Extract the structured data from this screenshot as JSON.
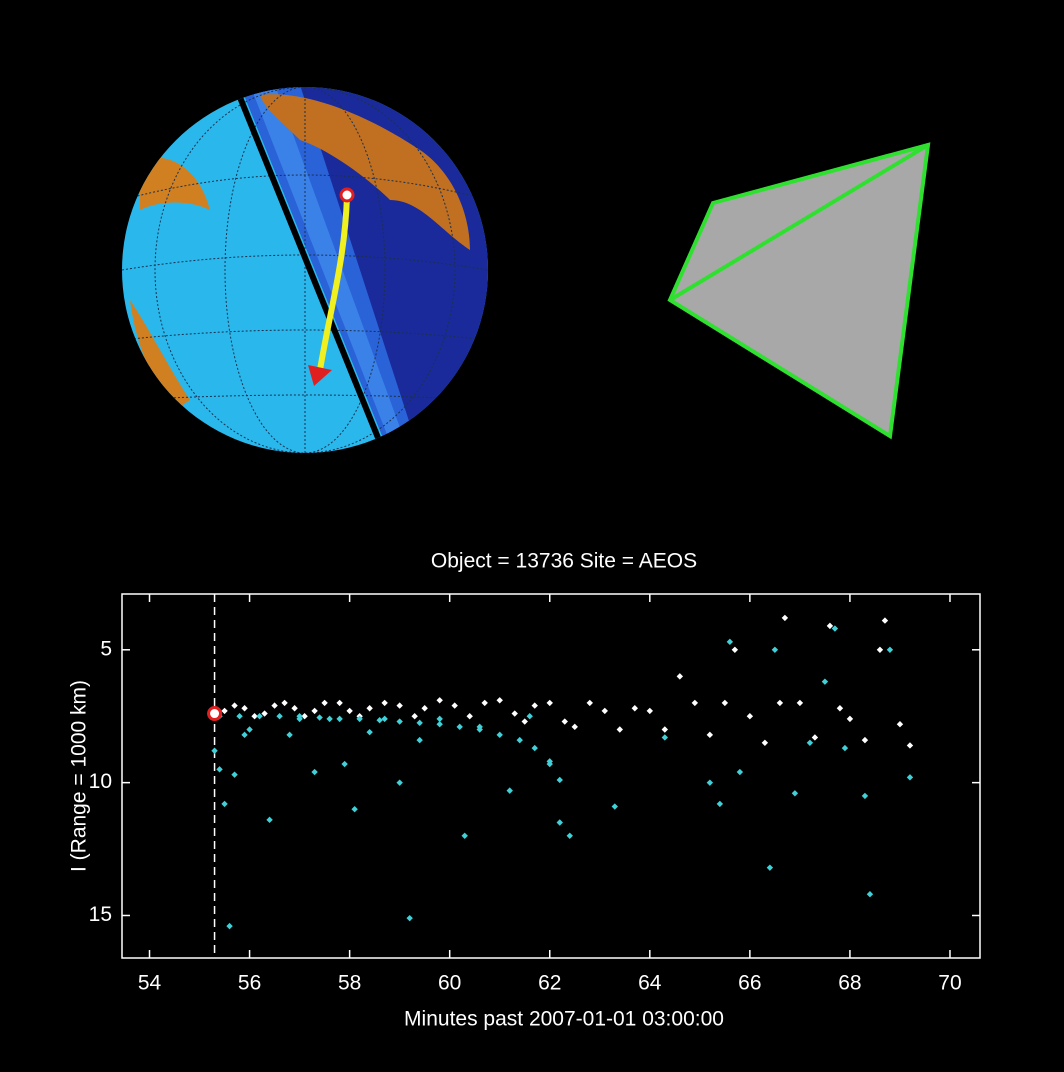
{
  "chart_data": {
    "type": "scatter",
    "title": "Object = 13736    Site = AEOS",
    "xlabel": "Minutes past 2007-01-01 03:00:00",
    "ylabel": "I (Range = 1000 km)",
    "xlim": [
      53.45,
      70.6
    ],
    "ylim": [
      16.6,
      2.9
    ],
    "xticks": [
      54,
      56,
      58,
      60,
      62,
      64,
      66,
      68,
      70
    ],
    "yticks": [
      5,
      10,
      15
    ],
    "vline": 55.3,
    "marker": {
      "x": 55.3,
      "y": 7.4,
      "color": "#e02020"
    },
    "series": [
      {
        "color": "#ffffff",
        "x": [
          55.3,
          55.5,
          55.7,
          55.9,
          56.1,
          56.3,
          56.5,
          56.7,
          56.9,
          57.1,
          57.3,
          57.5,
          57.8,
          58.0,
          58.2,
          58.4,
          58.7,
          59.0,
          59.3,
          59.5,
          59.8,
          60.1,
          60.4,
          60.7,
          61.0,
          61.3,
          61.5,
          61.7,
          62.0,
          62.3,
          62.5,
          62.8,
          63.1,
          63.4,
          63.7,
          64.0,
          64.3,
          64.6,
          64.9,
          65.2,
          65.5,
          65.7,
          66.0,
          66.3,
          66.6,
          66.7,
          67.0,
          67.3,
          67.6,
          67.8,
          68.0,
          68.3,
          68.6,
          68.7,
          69.0,
          69.2
        ],
        "values": [
          7.4,
          7.3,
          7.1,
          7.2,
          7.5,
          7.4,
          7.1,
          7.0,
          7.2,
          7.5,
          7.3,
          7.0,
          7.0,
          7.3,
          7.5,
          7.2,
          7.0,
          7.1,
          7.5,
          7.2,
          6.9,
          7.1,
          7.5,
          7.0,
          6.9,
          7.4,
          7.7,
          7.1,
          7.0,
          7.7,
          7.9,
          7.0,
          7.3,
          8.0,
          7.2,
          7.3,
          8.0,
          6.0,
          7.0,
          8.2,
          7.0,
          5.0,
          7.5,
          8.5,
          7.0,
          3.8,
          7.0,
          8.3,
          4.1,
          7.2,
          7.6,
          8.4,
          5.0,
          3.9,
          7.8,
          8.6
        ]
      },
      {
        "color": "#40d0d8",
        "x": [
          55.3,
          55.4,
          55.5,
          55.6,
          55.7,
          55.9,
          56.0,
          56.4,
          56.8,
          57.0,
          57.3,
          57.6,
          57.9,
          58.1,
          58.4,
          58.7,
          59.0,
          59.2,
          59.4,
          59.8,
          60.3,
          60.6,
          61.2,
          61.6,
          62.0,
          62.2,
          62.4,
          63.3,
          64.3,
          65.2,
          65.4,
          65.6,
          65.8,
          66.4,
          66.5,
          66.9,
          67.2,
          67.5,
          67.7,
          67.9,
          68.3,
          68.4,
          68.8,
          69.2
        ],
        "values": [
          8.8,
          9.5,
          10.8,
          15.4,
          9.7,
          8.2,
          8.0,
          11.4,
          8.2,
          7.6,
          9.6,
          7.6,
          9.3,
          11.0,
          8.1,
          7.6,
          10.0,
          15.1,
          8.4,
          7.6,
          12.0,
          7.9,
          10.3,
          7.5,
          9.3,
          11.5,
          12.0,
          10.9,
          8.3,
          10.0,
          10.8,
          4.7,
          9.6,
          13.2,
          5.0,
          10.4,
          8.5,
          6.2,
          4.2,
          8.7,
          10.5,
          14.2,
          5.0,
          9.8
        ]
      },
      {
        "color": "#40d0d8",
        "x": [
          55.4,
          55.8,
          56.2,
          56.6,
          57.0,
          57.4,
          57.8,
          58.2,
          58.6,
          59.0,
          59.4,
          59.8,
          60.2,
          60.6,
          61.0,
          61.4,
          61.7,
          62.0,
          62.2
        ],
        "values": [
          7.5,
          7.5,
          7.5,
          7.5,
          7.5,
          7.55,
          7.6,
          7.6,
          7.65,
          7.7,
          7.75,
          7.8,
          7.9,
          8.0,
          8.2,
          8.4,
          8.7,
          9.2,
          9.9
        ]
      }
    ]
  }
}
